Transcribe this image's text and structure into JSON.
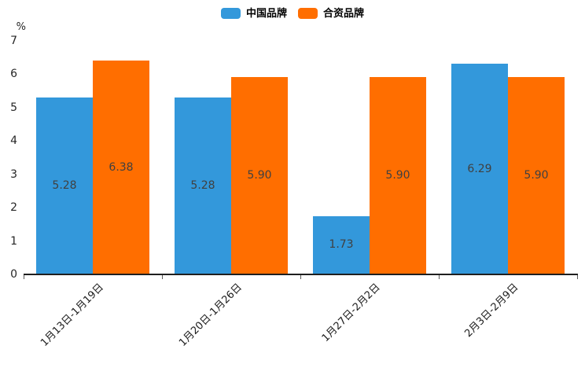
{
  "page": {
    "background": "#ffffff"
  },
  "legend": {
    "items": [
      {
        "label": "中国品牌",
        "color": "#3398DB"
      },
      {
        "label": "合资品牌",
        "color": "#FF6E00"
      }
    ]
  },
  "chart_data": {
    "type": "bar",
    "title": "",
    "unit_label": "%",
    "categories": [
      "1月13日-1月19日",
      "1月20日-1月26日",
      "1月27日-2月2日",
      "2月3日-2月9日"
    ],
    "series": [
      {
        "name": "中国品牌",
        "color": "#3398DB",
        "values": [
          5.28,
          5.28,
          1.73,
          6.29
        ],
        "labels": [
          "5.28",
          "5.28",
          "1.73",
          "6.29"
        ]
      },
      {
        "name": "合资品牌",
        "color": "#FF6E00",
        "values": [
          6.38,
          5.9,
          5.9,
          5.9
        ],
        "labels": [
          "6.38",
          "5.90",
          "5.90",
          "5.90"
        ]
      }
    ],
    "ylim": [
      0,
      7
    ],
    "yticks": [
      0,
      1,
      2,
      3,
      4,
      5,
      6,
      7
    ],
    "grid": false,
    "legend_position": "top-center",
    "value_label_position": "center-of-bar",
    "x_label_rotation_deg": 45
  }
}
